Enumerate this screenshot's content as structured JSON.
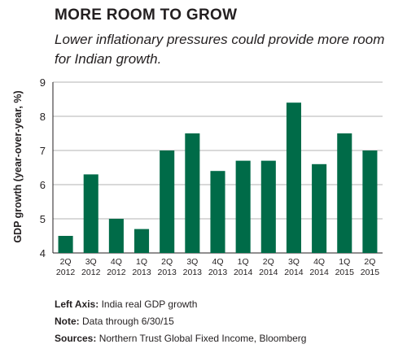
{
  "header": {
    "title": "MORE ROOM TO GROW",
    "subtitle": "Lower inflationary pressures could provide more room for Indian growth."
  },
  "colors": {
    "bar": "#006B48",
    "grid": "#9a9a9a",
    "text": "#231f20"
  },
  "notes": {
    "left_axis_label": "Left Axis:",
    "left_axis_text": "India real GDP growth",
    "note_label": "Note:",
    "note_text": "Data through 6/30/15",
    "sources_label": "Sources:",
    "sources_text": "Northern Trust Global Fixed Income, Bloomberg"
  },
  "chart_data": {
    "type": "bar",
    "title": "MORE ROOM TO GROW",
    "subtitle": "Lower inflationary pressures could provide more room for Indian growth.",
    "xlabel": "",
    "ylabel": "GDP growth (year-over-year, %)",
    "ylim": [
      4,
      9
    ],
    "yticks": [
      4,
      5,
      6,
      7,
      8,
      9
    ],
    "grid": true,
    "categories": [
      [
        "2Q",
        "2012"
      ],
      [
        "3Q",
        "2012"
      ],
      [
        "4Q",
        "2012"
      ],
      [
        "1Q",
        "2013"
      ],
      [
        "2Q",
        "2013"
      ],
      [
        "3Q",
        "2013"
      ],
      [
        "4Q",
        "2013"
      ],
      [
        "1Q",
        "2014"
      ],
      [
        "2Q",
        "2014"
      ],
      [
        "3Q",
        "2014"
      ],
      [
        "4Q",
        "2014"
      ],
      [
        "1Q",
        "2015"
      ],
      [
        "2Q",
        "2015"
      ]
    ],
    "series": [
      {
        "values": [
          4.5,
          6.3,
          5.0,
          4.7,
          7.0,
          7.5,
          6.4,
          6.7,
          6.7,
          8.4,
          6.6,
          7.5,
          7.0
        ]
      }
    ]
  }
}
